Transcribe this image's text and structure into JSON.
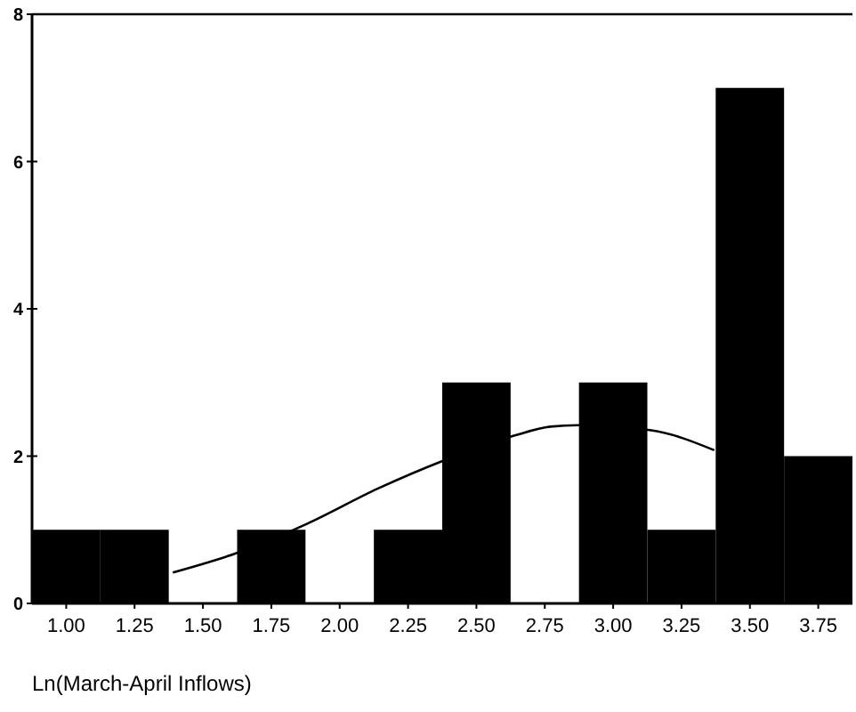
{
  "chart_data": {
    "type": "histogram",
    "xlabel": "Ln(March-April Inflows)",
    "bins": [
      0.875,
      1.125,
      1.375,
      1.625,
      1.875,
      2.125,
      2.375,
      2.625,
      2.875,
      3.125,
      3.375,
      3.625,
      3.875
    ],
    "values": [
      1,
      1,
      0,
      1,
      0,
      1,
      3,
      0,
      3,
      1,
      7,
      2
    ],
    "color": "#000000",
    "series": [
      {
        "type": "line",
        "color": "#000000",
        "x": [
          1.39,
          1.62,
          1.88,
          2.14,
          2.38,
          2.64,
          2.77,
          2.87,
          3.14,
          3.37
        ],
        "values": [
          0.42,
          0.68,
          1.08,
          1.56,
          1.94,
          2.28,
          2.4,
          2.42,
          2.35,
          2.08
        ]
      }
    ],
    "xlim": [
      0.875,
      3.875
    ],
    "xticks": [
      {
        "value": 1,
        "label": "1.00"
      },
      1.25,
      {
        "value": 1.5,
        "label": "1.50"
      },
      1.75,
      {
        "value": 2,
        "label": "2.00"
      },
      2.25,
      {
        "value": 2.5,
        "label": "2.50"
      },
      2.75,
      {
        "value": 3,
        "label": "3.00"
      },
      3.25,
      {
        "value": 3.5,
        "label": "3.50"
      },
      3.75
    ],
    "ylim": [
      0,
      8
    ],
    "yticks": [
      0,
      2,
      4,
      6,
      8
    ],
    "grid": false
  }
}
